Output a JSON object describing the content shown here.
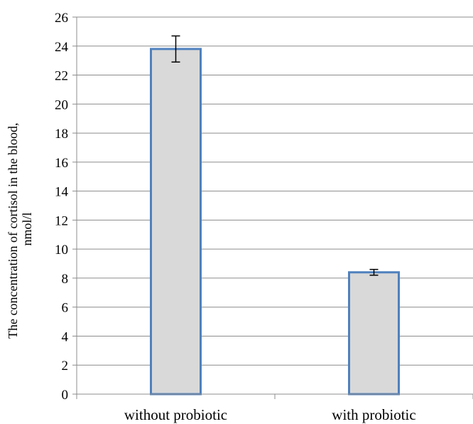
{
  "chart_data": {
    "type": "bar",
    "categories": [
      "without probiotic",
      "with probiotic"
    ],
    "series": [
      {
        "values": [
          23.8,
          8.4
        ],
        "error": [
          0.9,
          0.2
        ]
      }
    ],
    "xlabel": "",
    "ylabel_lines": [
      "The concentration of cortisol in the blood,",
      "nmol/l"
    ],
    "ylim": [
      0,
      26
    ],
    "yticks": [
      0,
      2,
      4,
      6,
      8,
      10,
      12,
      14,
      16,
      18,
      20,
      22,
      24,
      26
    ],
    "grid": true,
    "legend": "none",
    "colors": {
      "bar_fill": "#d9d9d9",
      "bar_stroke": "#4f81bd",
      "grid": "#8c8c8c",
      "axis": "#8c8c8c",
      "error_bar": "#000000"
    }
  }
}
